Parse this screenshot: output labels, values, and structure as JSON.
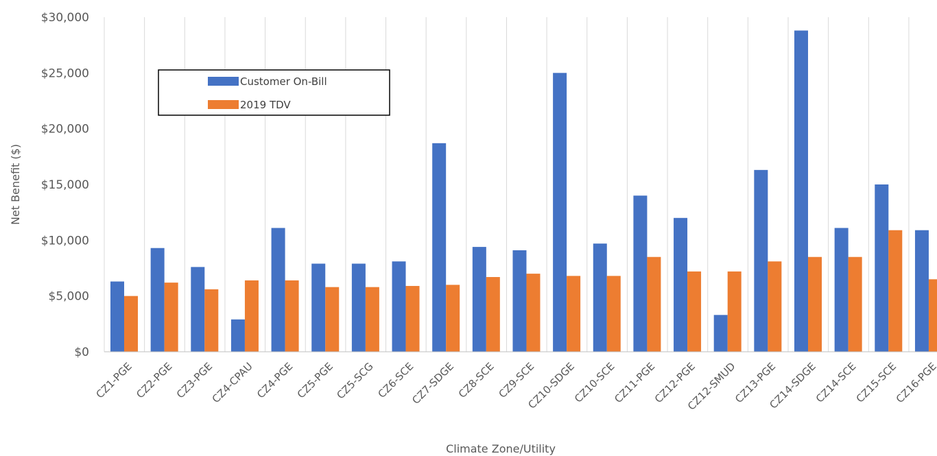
{
  "chart_data": {
    "type": "bar",
    "title": "",
    "xlabel": "Climate Zone/Utility",
    "ylabel": "Net Benefit ($)",
    "ylim": [
      0,
      30000
    ],
    "yticks": [
      0,
      5000,
      10000,
      15000,
      20000,
      25000,
      30000
    ],
    "ytick_labels": [
      "$0",
      "$5,000",
      "$10,000",
      "$15,000",
      "$20,000",
      "$25,000",
      "$30,000"
    ],
    "grid": "vertical",
    "legend": "top-left",
    "categories": [
      "CZ1-PGE",
      "CZ2-PGE",
      "CZ3-PGE",
      "CZ4-CPAU",
      "CZ4-PGE",
      "CZ5-PGE",
      "CZ5-SCG",
      "CZ6-SCE",
      "CZ7-SDGE",
      "CZ8-SCE",
      "CZ9-SCE",
      "CZ10-SDGE",
      "CZ10-SCE",
      "CZ11-PGE",
      "CZ12-PGE",
      "CZ12-SMUD",
      "CZ13-PGE",
      "CZ14-SDGE",
      "CZ14-SCE",
      "CZ15-SCE",
      "CZ16-PGE"
    ],
    "series": [
      {
        "name": "Customer On-Bill",
        "color": "#4472C4",
        "values": [
          6300,
          9300,
          7600,
          2900,
          11100,
          7900,
          7900,
          8100,
          18700,
          9400,
          9100,
          25000,
          9700,
          14000,
          12000,
          3300,
          16300,
          28800,
          11100,
          15000,
          10900
        ]
      },
      {
        "name": "2019 TDV",
        "color": "#ED7D31",
        "values": [
          5000,
          6200,
          5600,
          6400,
          6400,
          5800,
          5800,
          5900,
          6000,
          6700,
          7000,
          6800,
          6800,
          8500,
          7200,
          7200,
          8100,
          8500,
          8500,
          10900,
          6500
        ]
      }
    ]
  }
}
